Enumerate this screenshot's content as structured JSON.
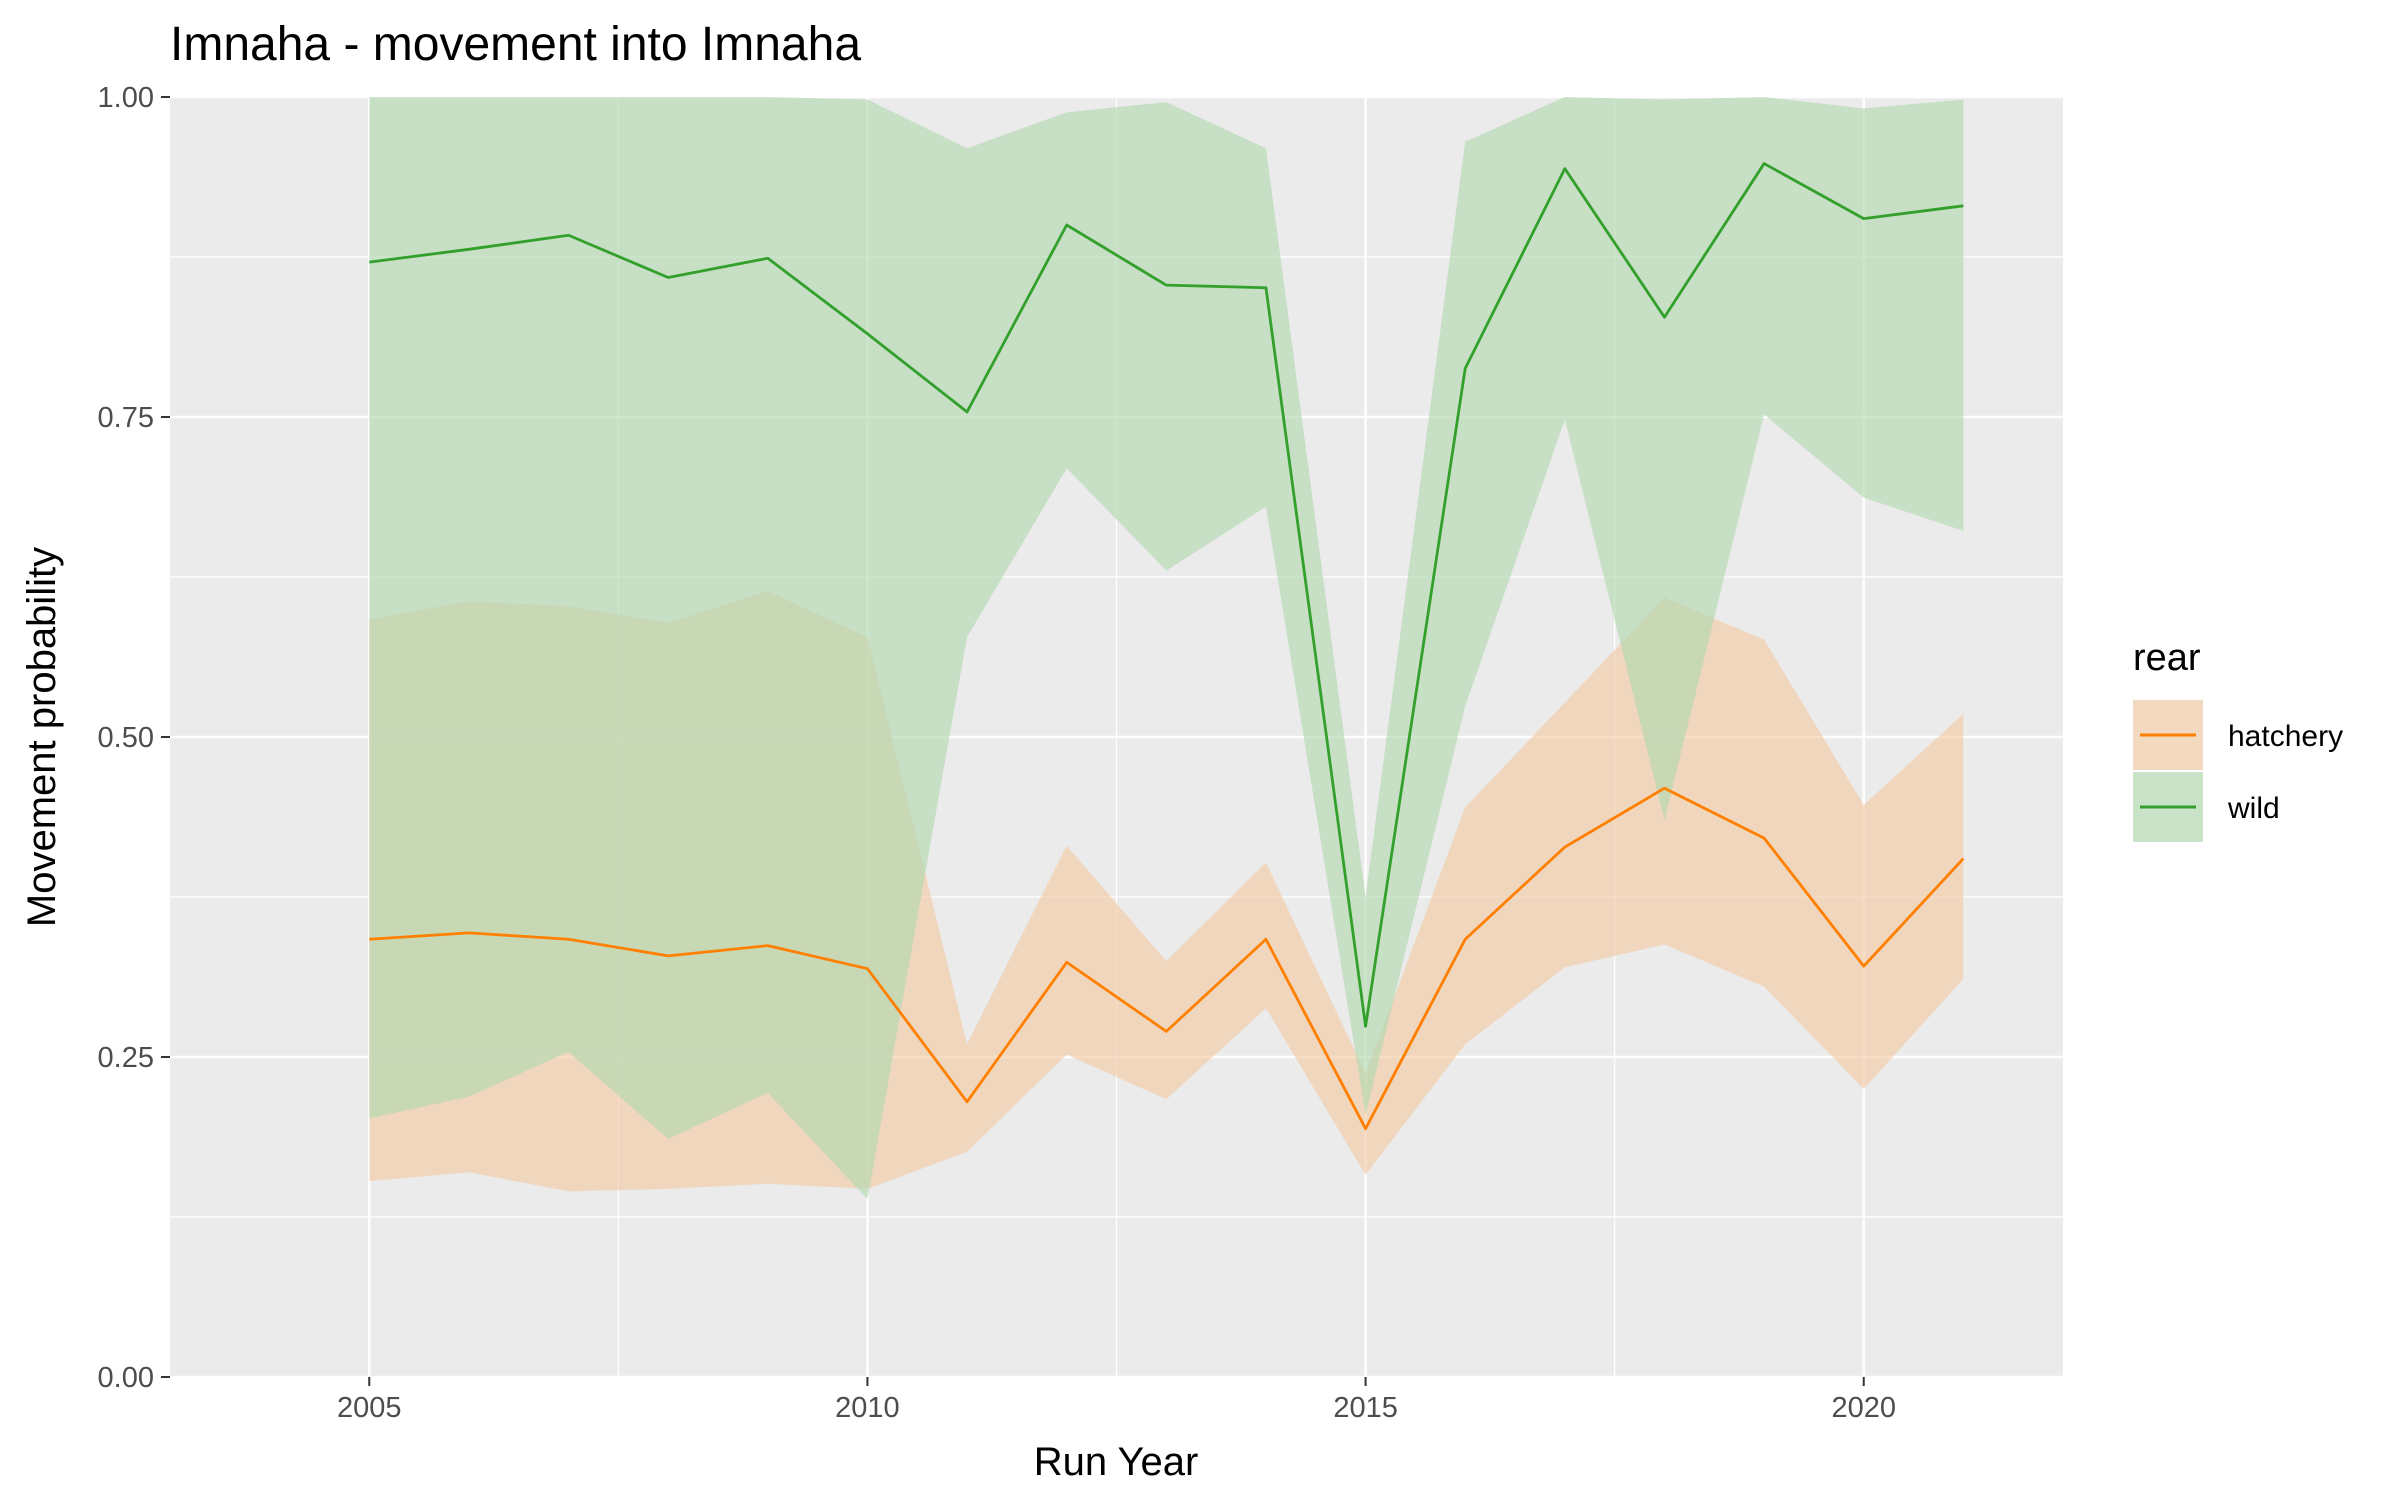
{
  "chart_data": {
    "type": "line",
    "title": "Imnaha - movement into Imnaha",
    "xlabel": "Run Year",
    "ylabel": "Movement probability",
    "xlim": [
      2003,
      2022
    ],
    "ylim": [
      0,
      1
    ],
    "x_ticks": [
      2005,
      2010,
      2015,
      2020
    ],
    "x_tick_labels": [
      "2005",
      "2010",
      "2015",
      "2020"
    ],
    "y_ticks": [
      0,
      0.25,
      0.5,
      0.75,
      1
    ],
    "y_tick_labels": [
      "0.00",
      "0.25",
      "0.50",
      "0.75",
      "1.00"
    ],
    "grid": true,
    "legend": {
      "title": "rear",
      "placement": "right"
    },
    "x": [
      2005,
      2006,
      2007,
      2008,
      2009,
      2010,
      2011,
      2012,
      2013,
      2014,
      2015,
      2016,
      2017,
      2018,
      2019,
      2020,
      2021
    ],
    "series": [
      {
        "name": "hatchery",
        "color": "#FF7F00",
        "ribbon_color": "#F3CBA5",
        "values": [
          0.342,
          0.347,
          0.342,
          0.329,
          0.337,
          0.319,
          0.215,
          0.324,
          0.27,
          0.342,
          0.194,
          0.342,
          0.414,
          0.46,
          0.421,
          0.321,
          0.405
        ],
        "lower": [
          0.153,
          0.16,
          0.145,
          0.147,
          0.151,
          0.147,
          0.176,
          0.252,
          0.217,
          0.288,
          0.158,
          0.26,
          0.32,
          0.338,
          0.305,
          0.225,
          0.311
        ],
        "upper": [
          0.592,
          0.606,
          0.602,
          0.589,
          0.614,
          0.578,
          0.26,
          0.415,
          0.325,
          0.402,
          0.237,
          0.445,
          0.527,
          0.609,
          0.576,
          0.447,
          0.518
        ]
      },
      {
        "name": "wild",
        "color": "#33A02C",
        "ribbon_color": "#B2D9B0",
        "values": [
          0.871,
          0.881,
          0.892,
          0.859,
          0.874,
          0.815,
          0.754,
          0.9,
          0.853,
          0.851,
          0.274,
          0.788,
          0.944,
          0.828,
          0.948,
          0.905,
          0.915
        ],
        "lower": [
          0.202,
          0.219,
          0.254,
          0.186,
          0.222,
          0.139,
          0.578,
          0.71,
          0.63,
          0.68,
          0.205,
          0.524,
          0.748,
          0.435,
          0.752,
          0.687,
          0.661
        ],
        "upper": [
          1.0,
          1.0,
          1.0,
          1.0,
          1.0,
          0.998,
          0.96,
          0.988,
          0.996,
          0.96,
          0.375,
          0.965,
          1.0,
          0.998,
          1.0,
          0.991,
          0.998
        ]
      }
    ]
  }
}
